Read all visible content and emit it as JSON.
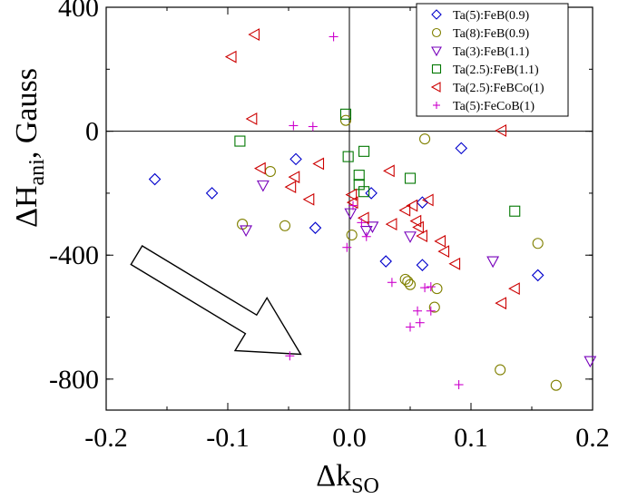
{
  "chart_data": {
    "type": "scatter",
    "xlabel": "Δk",
    "xlabel_sub": "SO",
    "ylabel_pre": "ΔH",
    "ylabel_sub": "ani",
    "ylabel_post": ", Gauss",
    "xlim": [
      -0.2,
      0.2
    ],
    "ylim": [
      -900,
      400
    ],
    "xticks": [
      -0.2,
      -0.1,
      0.0,
      0.1,
      0.2
    ],
    "xtick_labels": [
      "-0.2",
      "-0.1",
      "0.0",
      "0.1",
      "0.2"
    ],
    "yticks": [
      -800,
      -400,
      0,
      400
    ],
    "ytick_labels": [
      "-800",
      "-400",
      "0",
      "400"
    ],
    "zero_lines": true,
    "legend_position": "top-right",
    "annotation": {
      "type": "arrow",
      "from": [
        -0.175,
        -400
      ],
      "to": [
        -0.04,
        -720
      ]
    },
    "series": [
      {
        "name": "Ta(5):FeB(0.9)",
        "marker": "diamond",
        "color": "#0000cc",
        "points": [
          [
            -0.16,
            -155
          ],
          [
            -0.113,
            -200
          ],
          [
            -0.044,
            -90
          ],
          [
            -0.028,
            -312
          ],
          [
            0.018,
            -200
          ],
          [
            0.03,
            -420
          ],
          [
            0.06,
            -230
          ],
          [
            0.06,
            -432
          ],
          [
            0.092,
            -55
          ],
          [
            0.155,
            -465
          ]
        ]
      },
      {
        "name": "Ta(8):FeB(0.9)",
        "marker": "circle",
        "color": "#808000",
        "points": [
          [
            -0.088,
            -300
          ],
          [
            -0.065,
            -130
          ],
          [
            -0.053,
            -305
          ],
          [
            -0.003,
            35
          ],
          [
            0.002,
            -335
          ],
          [
            0.046,
            -478
          ],
          [
            0.048,
            -485
          ],
          [
            0.05,
            -495
          ],
          [
            0.062,
            -25
          ],
          [
            0.07,
            -568
          ],
          [
            0.072,
            -508
          ],
          [
            0.124,
            -770
          ],
          [
            0.155,
            -362
          ],
          [
            0.17,
            -820
          ]
        ]
      },
      {
        "name": "Ta(3):FeB(1.1)",
        "marker": "triangle-down",
        "color": "#7700bb",
        "points": [
          [
            -0.085,
            -320
          ],
          [
            -0.071,
            -175
          ],
          [
            0.001,
            -265
          ],
          [
            0.014,
            -322
          ],
          [
            0.019,
            -308
          ],
          [
            0.05,
            -340
          ],
          [
            0.118,
            -420
          ],
          [
            0.198,
            -742
          ]
        ]
      },
      {
        "name": "Ta(2.5):FeB(1.1)",
        "marker": "square",
        "color": "#007700",
        "points": [
          [
            -0.09,
            -32
          ],
          [
            -0.003,
            55
          ],
          [
            -0.001,
            -82
          ],
          [
            0.008,
            -142
          ],
          [
            0.008,
            -172
          ],
          [
            0.012,
            -65
          ],
          [
            0.012,
            -195
          ],
          [
            0.05,
            -152
          ],
          [
            0.136,
            -258
          ]
        ]
      },
      {
        "name": "Ta(2.5):FeBCo(1)",
        "marker": "triangle-left",
        "color": "#cc0000",
        "points": [
          [
            -0.097,
            240
          ],
          [
            -0.078,
            312
          ],
          [
            -0.08,
            40
          ],
          [
            -0.073,
            -120
          ],
          [
            -0.048,
            -180
          ],
          [
            -0.045,
            -148
          ],
          [
            -0.033,
            -220
          ],
          [
            -0.025,
            -105
          ],
          [
            0.002,
            -205
          ],
          [
            0.003,
            -230
          ],
          [
            0.012,
            -280
          ],
          [
            0.035,
            -300
          ],
          [
            0.033,
            -128
          ],
          [
            0.046,
            -255
          ],
          [
            0.052,
            -240
          ],
          [
            0.055,
            -290
          ],
          [
            0.057,
            -310
          ],
          [
            0.06,
            -338
          ],
          [
            0.065,
            -222
          ],
          [
            0.075,
            -355
          ],
          [
            0.078,
            -388
          ],
          [
            0.087,
            -428
          ],
          [
            0.125,
            2
          ],
          [
            0.125,
            -555
          ],
          [
            0.136,
            -508
          ]
        ]
      },
      {
        "name": "Ta(5):FeCoB(1)",
        "marker": "plus",
        "color": "#cc00cc",
        "points": [
          [
            -0.013,
            305
          ],
          [
            -0.046,
            18
          ],
          [
            -0.03,
            15
          ],
          [
            -0.002,
            -375
          ],
          [
            0.003,
            -240
          ],
          [
            0.01,
            -295
          ],
          [
            0.014,
            -340
          ],
          [
            0.035,
            -488
          ],
          [
            0.05,
            -632
          ],
          [
            0.056,
            -580
          ],
          [
            0.058,
            -618
          ],
          [
            0.062,
            -505
          ],
          [
            0.067,
            -502
          ],
          [
            0.067,
            -580
          ],
          [
            0.09,
            -818
          ],
          [
            -0.049,
            -725
          ]
        ]
      }
    ]
  }
}
